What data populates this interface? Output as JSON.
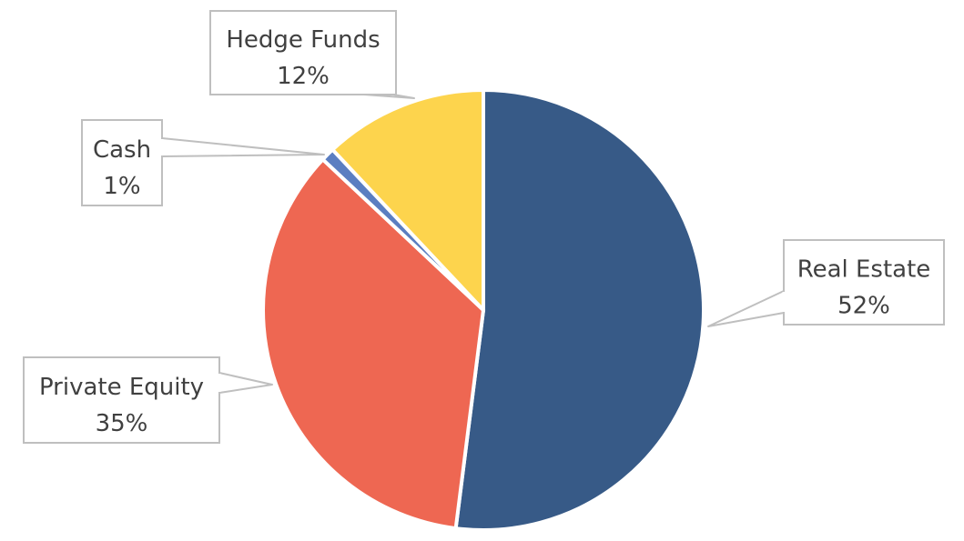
{
  "chart_data": {
    "type": "pie",
    "slices": [
      {
        "label": "Real Estate",
        "value": 52,
        "display": "52%",
        "color": "#375A87"
      },
      {
        "label": "Private Equity",
        "value": 35,
        "display": "35%",
        "color": "#EE6752"
      },
      {
        "label": "Cash",
        "value": 1,
        "display": "1%",
        "color": "#5B7EC1"
      },
      {
        "label": "Hedge Funds",
        "value": 12,
        "display": "12%",
        "color": "#FDD44D"
      }
    ],
    "start_angle": "12 o'clock",
    "direction": "clockwise",
    "legend": "none",
    "data_labels": "callouts"
  }
}
